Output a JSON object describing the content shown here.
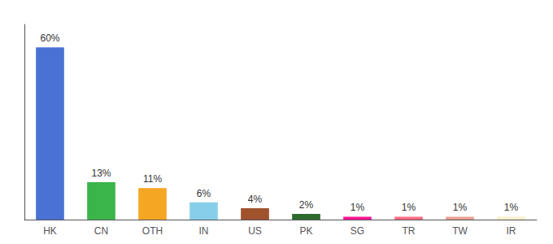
{
  "chart_data": {
    "type": "bar",
    "categories": [
      "HK",
      "CN",
      "OTH",
      "IN",
      "US",
      "PK",
      "SG",
      "TR",
      "TW",
      "IR"
    ],
    "values": [
      60,
      13,
      11,
      6,
      4,
      2,
      1,
      1,
      1,
      1
    ],
    "value_labels": [
      "60%",
      "13%",
      "11%",
      "6%",
      "4%",
      "2%",
      "1%",
      "1%",
      "1%",
      "1%"
    ],
    "colors": [
      "#4a72d4",
      "#3ab54a",
      "#f5a623",
      "#87ceeb",
      "#a0522d",
      "#2d6a2d",
      "#ff1493",
      "#ff6b81",
      "#e8a090",
      "#f5f0c8"
    ],
    "ylim": [
      0,
      68
    ],
    "data_labels": true,
    "tick_labels": "x",
    "grid": false
  }
}
